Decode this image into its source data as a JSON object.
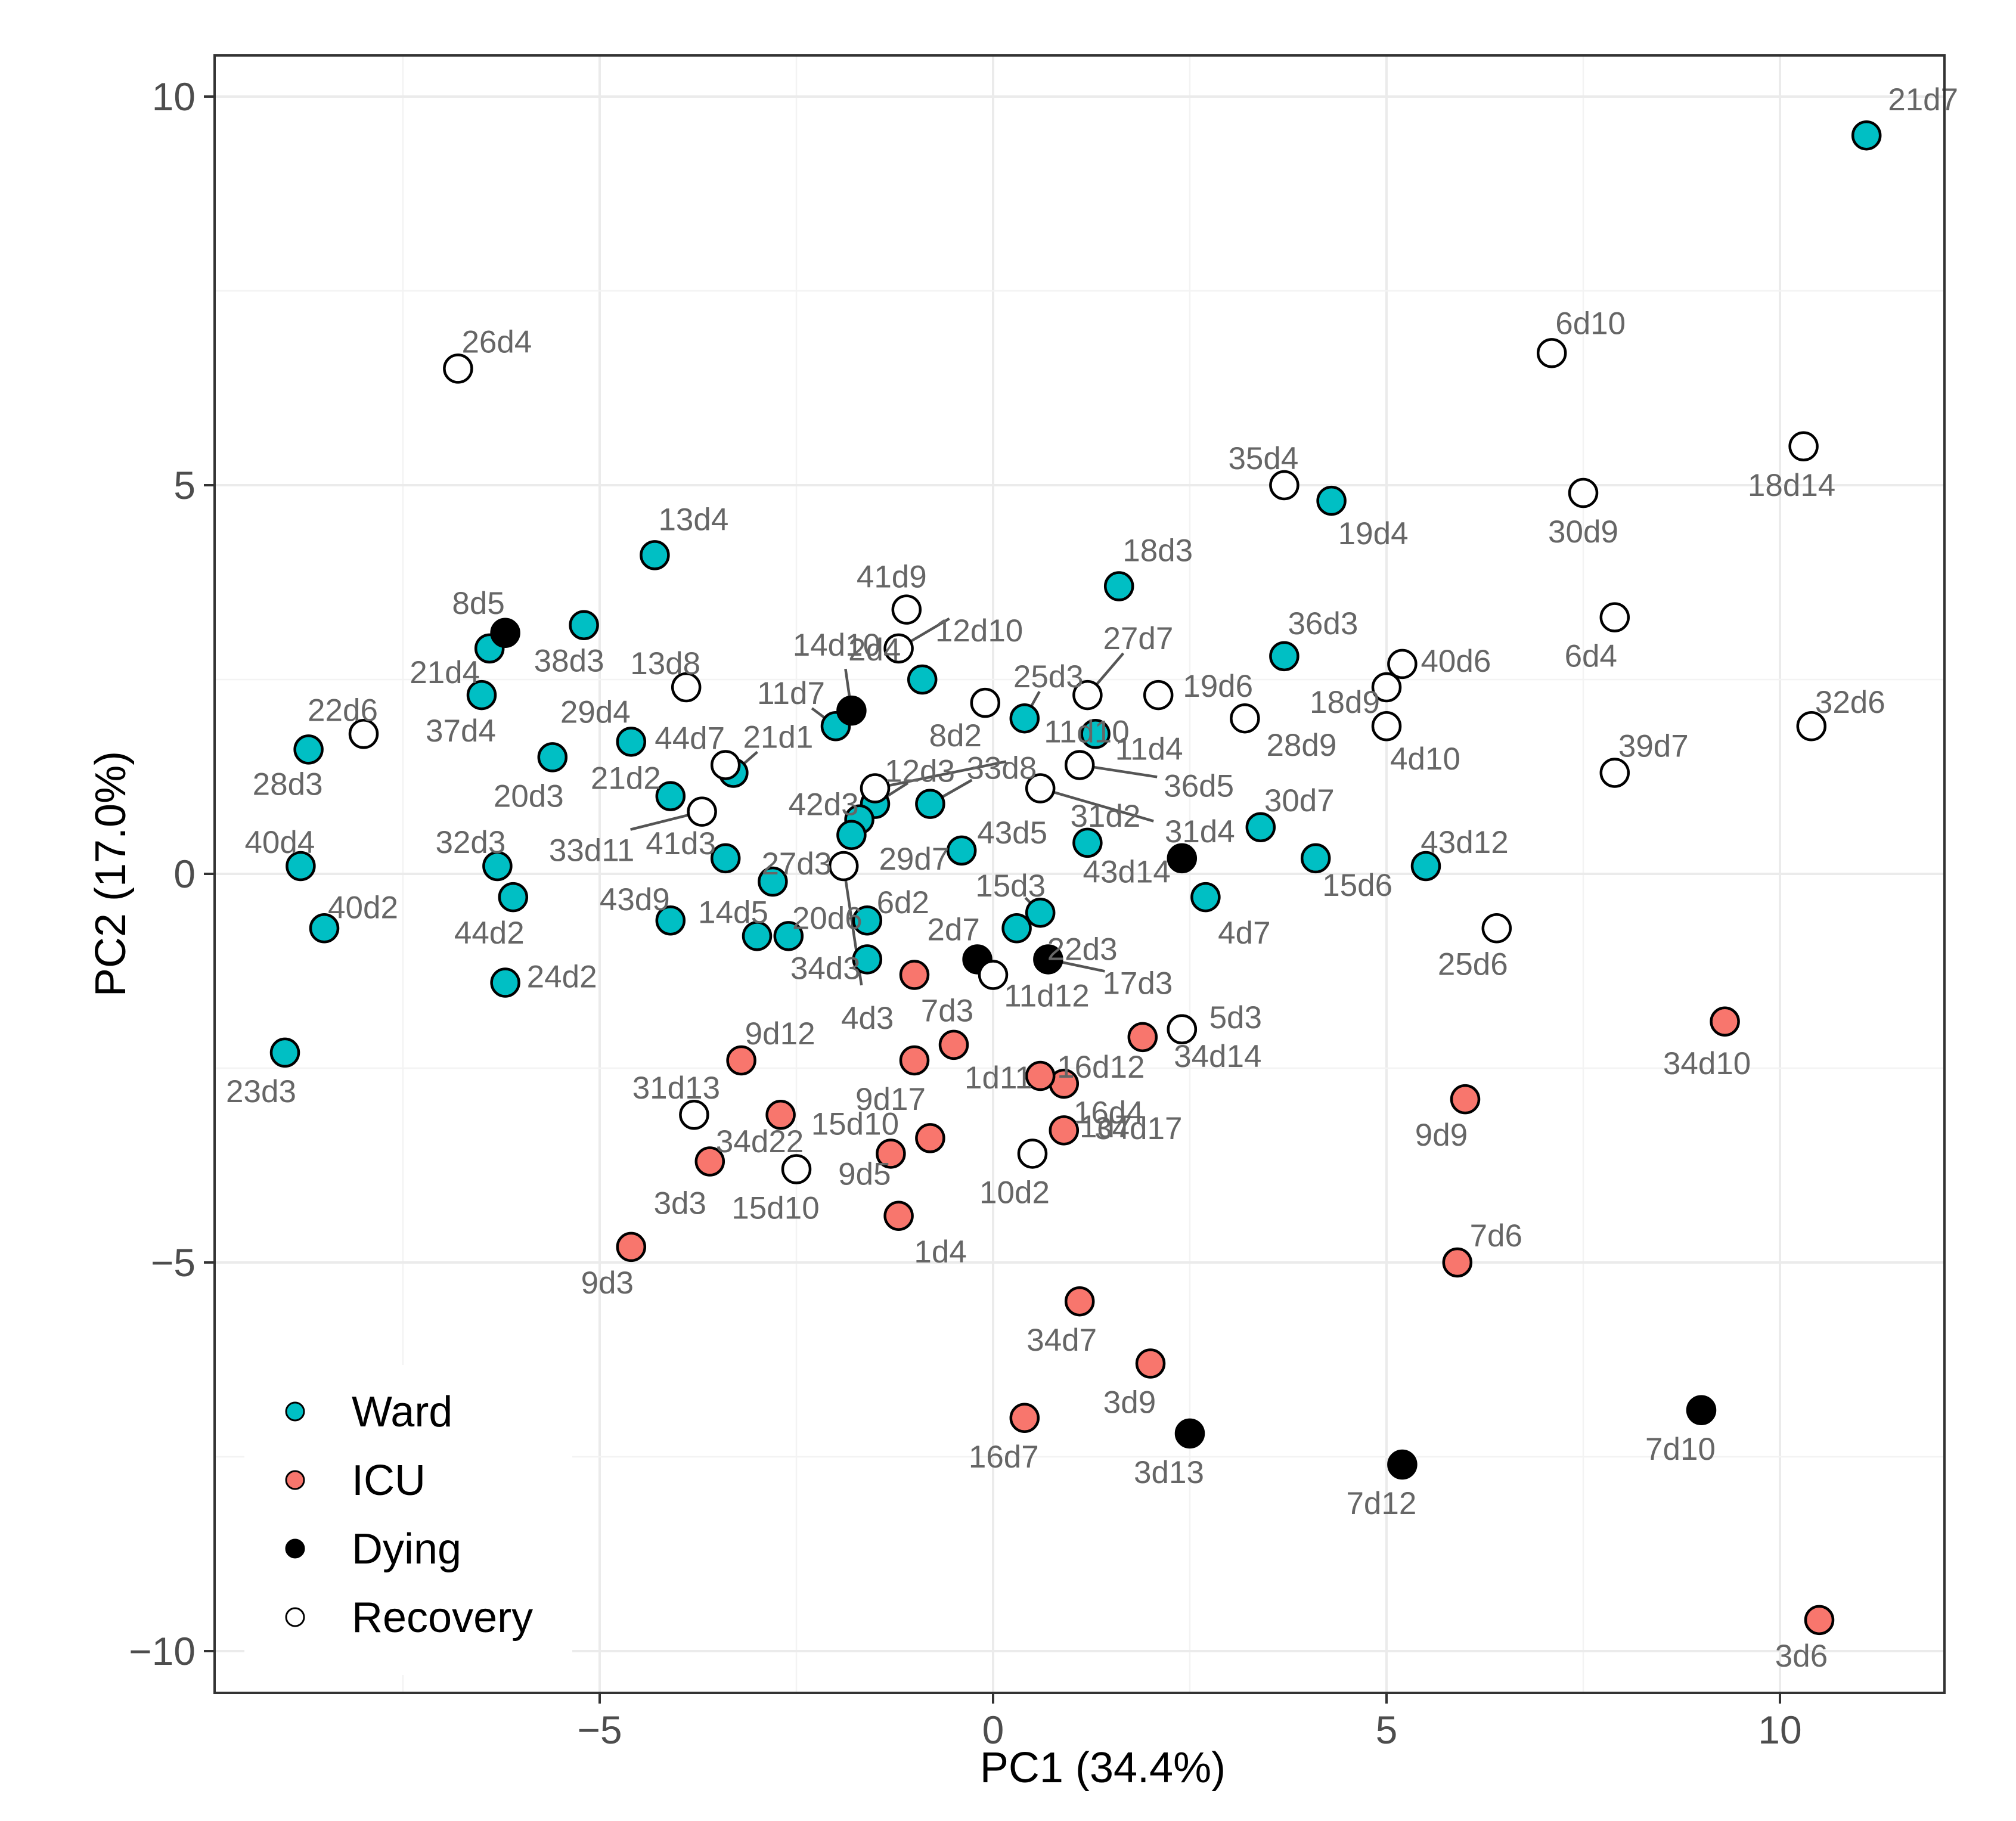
{
  "chart_data": {
    "type": "scatter",
    "title": "",
    "xlabel": "PC1 (34.4%)",
    "ylabel": "PC2 (17.0%)",
    "xlim": [
      -10,
      12.2
    ],
    "ylim": [
      -10.6,
      10.5
    ],
    "x_ticks": [
      -5,
      0,
      5,
      10
    ],
    "x_tick_labels": [
      "−5",
      "0",
      "5",
      "10"
    ],
    "y_ticks": [
      -10,
      -5,
      0,
      5,
      10
    ],
    "y_tick_labels": [
      "−10",
      "−5",
      "0",
      "5",
      "10"
    ],
    "grid": true,
    "legend": {
      "position": "bottom-left",
      "entries": [
        {
          "group": "Ward",
          "label": "Ward",
          "color": "#00BFC4"
        },
        {
          "group": "ICU",
          "label": "ICU",
          "color": "#F8766D"
        },
        {
          "group": "Dying",
          "label": "Dying",
          "color": "#000000"
        },
        {
          "group": "Recovery",
          "label": "Recovery",
          "color": "#FFFFFF"
        }
      ]
    },
    "colors": {
      "Ward": "#00BFC4",
      "ICU": "#F8766D",
      "Dying": "#000000",
      "Recovery": "#FFFFFF"
    },
    "series": [
      {
        "name": "Ward",
        "points": [
          {
            "label": "21d7",
            "x": 11.1,
            "y": 9.5
          },
          {
            "label": "19d4",
            "x": 4.3,
            "y": 4.8
          },
          {
            "label": "13d4",
            "x": -4.3,
            "y": 4.1
          },
          {
            "label": "18d3",
            "x": 1.6,
            "y": 3.7
          },
          {
            "label": "38d3",
            "x": -5.2,
            "y": 3.2
          },
          {
            "label": "21d4",
            "x": -6.4,
            "y": 2.9
          },
          {
            "label": "36d3",
            "x": 3.7,
            "y": 2.8
          },
          {
            "label": "2d4",
            "x": -0.9,
            "y": 2.5
          },
          {
            "label": "37d4",
            "x": -6.5,
            "y": 2.3
          },
          {
            "label": "25d3",
            "x": 0.4,
            "y": 2.0
          },
          {
            "label": "11d4",
            "x": 1.3,
            "y": 1.8
          },
          {
            "label": "11d7",
            "x": -2.0,
            "y": 1.9
          },
          {
            "label": "29d4",
            "x": -4.6,
            "y": 1.7
          },
          {
            "label": "28d3",
            "x": -8.7,
            "y": 1.6
          },
          {
            "label": "20d3",
            "x": -5.6,
            "y": 1.5
          },
          {
            "label": "21d1",
            "x": -3.3,
            "y": 1.3
          },
          {
            "label": "21d2",
            "x": -4.1,
            "y": 1.0
          },
          {
            "label": "33d8",
            "x": -0.8,
            "y": 0.9
          },
          {
            "label": "12d3",
            "x": -1.5,
            "y": 0.9
          },
          {
            "label": "42d3",
            "x": -1.7,
            "y": 0.7
          },
          {
            "label": "30d7",
            "x": 3.4,
            "y": 0.6
          },
          {
            "label": "29d7",
            "x": -1.8,
            "y": 0.5
          },
          {
            "label": "31d2",
            "x": 1.2,
            "y": 0.4
          },
          {
            "label": "43d5",
            "x": -0.4,
            "y": 0.3
          },
          {
            "label": "41d3",
            "x": -3.4,
            "y": 0.2
          },
          {
            "label": "32d3",
            "x": -6.3,
            "y": 0.1
          },
          {
            "label": "15d6",
            "x": 4.1,
            "y": 0.2
          },
          {
            "label": "43d12",
            "x": 5.5,
            "y": 0.1
          },
          {
            "label": "40d4",
            "x": -8.8,
            "y": 0.1
          },
          {
            "label": "27d3",
            "x": -2.8,
            "y": -0.1
          },
          {
            "label": "44d2",
            "x": -6.1,
            "y": -0.3
          },
          {
            "label": "4d7",
            "x": 2.7,
            "y": -0.3
          },
          {
            "label": "15d3",
            "x": 0.6,
            "y": -0.5
          },
          {
            "label": "6d2",
            "x": -1.6,
            "y": -0.6
          },
          {
            "label": "43d9",
            "x": -4.1,
            "y": -0.6
          },
          {
            "label": "40d2",
            "x": -8.5,
            "y": -0.7
          },
          {
            "label": "22d3",
            "x": 0.3,
            "y": -0.7
          },
          {
            "label": "14d5",
            "x": -3.0,
            "y": -0.8
          },
          {
            "label": "20d6",
            "x": -2.6,
            "y": -0.8
          },
          {
            "label": "34d3",
            "x": -1.6,
            "y": -1.1
          },
          {
            "label": "24d2",
            "x": -6.2,
            "y": -1.4
          },
          {
            "label": "23d3",
            "x": -9.0,
            "y": -2.3
          }
        ]
      },
      {
        "name": "ICU",
        "points": [
          {
            "label": "7d3",
            "x": -1.0,
            "y": -1.3
          },
          {
            "label": "34d10",
            "x": 9.3,
            "y": -1.9
          },
          {
            "label": "16d12",
            "x": 1.9,
            "y": -2.1
          },
          {
            "label": "1d11",
            "x": -0.5,
            "y": -2.2
          },
          {
            "label": "9d12",
            "x": -3.2,
            "y": -2.4
          },
          {
            "label": "9d17",
            "x": -1.0,
            "y": -2.4
          },
          {
            "label": "34d17",
            "x": 0.9,
            "y": -2.7
          },
          {
            "label": "1d7",
            "x": 0.6,
            "y": -2.6
          },
          {
            "label": "9d9",
            "x": 6.0,
            "y": -2.9
          },
          {
            "label": "34d22",
            "x": -2.7,
            "y": -3.1
          },
          {
            "label": "16d4",
            "x": 0.9,
            "y": -3.3
          },
          {
            "label": "9d5",
            "x": -0.8,
            "y": -3.4
          },
          {
            "label": "3d3",
            "x": -3.6,
            "y": -3.7
          },
          {
            "label": "15d10",
            "x": -1.3,
            "y": -3.6
          },
          {
            "label": "1d4",
            "x": -1.2,
            "y": -4.4
          },
          {
            "label": "9d3",
            "x": -4.6,
            "y": -4.8
          },
          {
            "label": "7d6",
            "x": 5.9,
            "y": -5.0
          },
          {
            "label": "34d7",
            "x": 1.1,
            "y": -5.5
          },
          {
            "label": "3d9",
            "x": 2.0,
            "y": -6.3
          },
          {
            "label": "16d7",
            "x": 0.4,
            "y": -7.0
          },
          {
            "label": "3d6",
            "x": 10.5,
            "y": -9.6
          }
        ]
      },
      {
        "name": "Dying",
        "points": [
          {
            "label": "8d5",
            "x": -6.2,
            "y": 3.1
          },
          {
            "label": "14d10",
            "x": -1.8,
            "y": 2.1
          },
          {
            "label": "31d4",
            "x": 2.4,
            "y": 0.2
          },
          {
            "label": "2d7",
            "x": -0.2,
            "y": -1.1
          },
          {
            "label": "17d3",
            "x": 0.7,
            "y": -1.1
          },
          {
            "label": "3d13",
            "x": 2.5,
            "y": -7.2
          },
          {
            "label": "7d12",
            "x": 5.2,
            "y": -7.6
          },
          {
            "label": "7d10",
            "x": 9.0,
            "y": -6.9
          }
        ]
      },
      {
        "name": "Recovery",
        "points": [
          {
            "label": "6d10",
            "x": 7.1,
            "y": 6.7
          },
          {
            "label": "26d4",
            "x": -6.8,
            "y": 6.5
          },
          {
            "label": "18d14",
            "x": 10.3,
            "y": 5.5
          },
          {
            "label": "35d4",
            "x": 3.7,
            "y": 5.0
          },
          {
            "label": "30d9",
            "x": 7.5,
            "y": 4.9
          },
          {
            "label": "41d9",
            "x": -1.1,
            "y": 3.4
          },
          {
            "label": "6d4",
            "x": 7.9,
            "y": 3.3
          },
          {
            "label": "12d10",
            "x": -1.2,
            "y": 2.9
          },
          {
            "label": "40d6",
            "x": 5.2,
            "y": 2.7
          },
          {
            "label": "13d8",
            "x": -3.9,
            "y": 2.4
          },
          {
            "label": "18d9",
            "x": 5.0,
            "y": 2.4
          },
          {
            "label": "27d7",
            "x": 1.2,
            "y": 2.3
          },
          {
            "label": "19d6",
            "x": 2.1,
            "y": 2.3
          },
          {
            "label": "8d2",
            "x": -0.1,
            "y": 2.2
          },
          {
            "label": "28d9",
            "x": 3.2,
            "y": 2.0
          },
          {
            "label": "4d10",
            "x": 5.0,
            "y": 1.9
          },
          {
            "label": "32d6",
            "x": 10.4,
            "y": 1.9
          },
          {
            "label": "22d6",
            "x": -8.0,
            "y": 1.8
          },
          {
            "label": "44d7",
            "x": -3.4,
            "y": 1.4
          },
          {
            "label": "36d5",
            "x": 1.1,
            "y": 1.4
          },
          {
            "label": "39d7",
            "x": 7.9,
            "y": 1.3
          },
          {
            "label": "43d14",
            "x": 0.6,
            "y": 1.1
          },
          {
            "label": "11d10",
            "x": -1.5,
            "y": 1.1
          },
          {
            "label": "33d11",
            "x": -3.7,
            "y": 0.8
          },
          {
            "label": "4d3",
            "x": -1.9,
            "y": 0.1
          },
          {
            "label": "25d6",
            "x": 6.4,
            "y": -0.7
          },
          {
            "label": "11d12",
            "x": 0.0,
            "y": -1.3
          },
          {
            "label": "5d3",
            "x": 2.4,
            "y": -2.0
          },
          {
            "label": "34d14",
            "x": 2.4,
            "y": -2.0
          },
          {
            "label": "31d13",
            "x": -3.8,
            "y": -3.1
          },
          {
            "label": "10d2",
            "x": 0.5,
            "y": -3.6
          },
          {
            "label": "15d10",
            "x": -2.5,
            "y": -3.8
          }
        ]
      }
    ]
  }
}
